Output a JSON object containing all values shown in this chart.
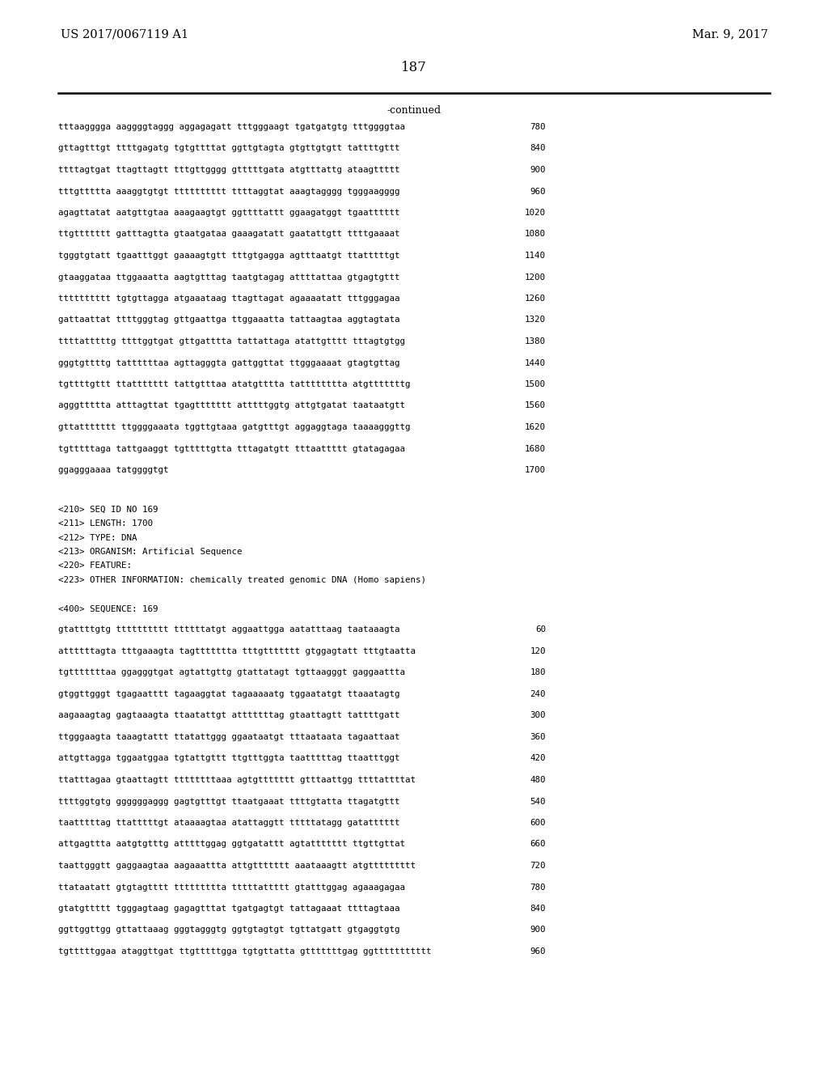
{
  "header_left": "US 2017/0067119 A1",
  "header_right": "Mar. 9, 2017",
  "page_number": "187",
  "continued_label": "-continued",
  "background_color": "#ffffff",
  "text_color": "#000000",
  "sequence_lines_top": [
    {
      "seq": "tttaagggga aaggggtaggg aggagagatt tttgggaagt tgatgatgtg tttggggtaa",
      "num": "780"
    },
    {
      "seq": "gttagtttgt ttttgagatg tgtgttttat ggttgtagta gtgttgtgtt tattttgttt",
      "num": "840"
    },
    {
      "seq": "ttttagtgat ttagttagtt tttgttgggg gtttttgata atgtttattg ataagttttt",
      "num": "900"
    },
    {
      "seq": "tttgttttta aaaggtgtgt tttttttttt ttttaggtat aaagtagggg tgggaagggg",
      "num": "960"
    },
    {
      "seq": "agagttatat aatgttgtaa aaagaagtgt ggttttattt ggaagatggt tgaatttttt",
      "num": "1020"
    },
    {
      "seq": "ttgttttttt gatttagtta gtaatgataa gaaagatatt gaatattgtt ttttgaaaat",
      "num": "1080"
    },
    {
      "seq": "tgggtgtatt tgaatttggt gaaaagtgtt tttgtgagga agtttaatgt ttatttttgt",
      "num": "1140"
    },
    {
      "seq": "gtaaggataa ttggaaatta aagtgtttag taatgtagag attttattaa gtgagtgttt",
      "num": "1200"
    },
    {
      "seq": "tttttttttt tgtgttagga atgaaataag ttagttagat agaaaatatt tttgggagaa",
      "num": "1260"
    },
    {
      "seq": "gattaattat ttttgggtag gttgaattga ttggaaatta tattaagtaa aggtagtata",
      "num": "1320"
    },
    {
      "seq": "ttttatttttg ttttggtgat gttgatttta tattattaga atattgtttt tttagtgtgg",
      "num": "1380"
    },
    {
      "seq": "gggtgttttg tattttttaa agttagggta gattggttat ttgggaaaat gtagtgttag",
      "num": "1440"
    },
    {
      "seq": "tgttttgttt ttattttttt tattgtttaa atatgtttta tatttttttta atgtttttttg",
      "num": "1500"
    },
    {
      "seq": "agggttttta atttagttat tgagttttttt atttttggtg attgtgatat taataatgtt",
      "num": "1560"
    },
    {
      "seq": "gttattttttt ttggggaaata tggttgtaaa gatgtttgt aggaggtaga taaaagggttg",
      "num": "1620"
    },
    {
      "seq": "tgtttttaga tattgaaggt tgtttttgtta tttagatgtt tttaattttt gtatagagaa",
      "num": "1680"
    },
    {
      "seq": "ggagggaaaa tatggggtgt",
      "num": "1700"
    }
  ],
  "metadata_lines": [
    "<210> SEQ ID NO 169",
    "<211> LENGTH: 1700",
    "<212> TYPE: DNA",
    "<213> ORGANISM: Artificial Sequence",
    "<220> FEATURE:",
    "<223> OTHER INFORMATION: chemically treated genomic DNA (Homo sapiens)"
  ],
  "sequence_label": "<400> SEQUENCE: 169",
  "sequence_lines_bottom": [
    {
      "seq": "gtattttgtg tttttttttt ttttttatgt aggaattgga aatatttaag taataaagta",
      "num": "60"
    },
    {
      "seq": "attttttagta tttgaaagta tagttttttta tttgttttttt gtggagtatt tttgtaatta",
      "num": "120"
    },
    {
      "seq": "tgtttttttaa ggagggtgat agtattgttg gtattatagt tgttaagggt gaggaattta",
      "num": "180"
    },
    {
      "seq": "gtggttgggt tgagaatttt tagaaggtat tagaaaaatg tggaatatgt ttaaatagtg",
      "num": "240"
    },
    {
      "seq": "aagaaagtag gagtaaagta ttaatattgt atttttttag gtaattagtt tattttgatt",
      "num": "300"
    },
    {
      "seq": "ttgggaagta taaagtattt ttatattggg ggaataatgt tttaataata tagaattaat",
      "num": "360"
    },
    {
      "seq": "attgttagga tggaatggaa tgtattgttt ttgtttggta taatttttag ttaatttggt",
      "num": "420"
    },
    {
      "seq": "ttatttagaa gtaattagtt ttttttttaaa agtgttttttt gtttaattgg ttttattttat",
      "num": "480"
    },
    {
      "seq": "ttttggtgtg ggggggaggg gagtgtttgt ttaatgaaat ttttgtatta ttagatgttt",
      "num": "540"
    },
    {
      "seq": "taatttttag ttatttttgt ataaaagtaa atattaggtt tttttatagg gatatttttt",
      "num": "600"
    },
    {
      "seq": "attgagttta aatgtgtttg atttttggag ggtgatattt agtattttttt ttgttgttat",
      "num": "660"
    },
    {
      "seq": "taattgggtt gaggaagtaa aagaaattta attgttttttt aaataaagtt atgttttttttt",
      "num": "720"
    },
    {
      "seq": "ttataatatt gtgtagtttt ttttttttta tttttattttt gtatttggag agaaagagaa",
      "num": "780"
    },
    {
      "seq": "gtatgttttt tgggagtaag gagagtttat tgatgagtgt tattagaaat ttttagtaaa",
      "num": "840"
    },
    {
      "seq": "ggttggttgg gttattaaag gggtagggtg ggtgtagtgt tgttatgatt gtgaggtgtg",
      "num": "900"
    },
    {
      "seq": "tgtttttggaa ataggttgat ttgtttttgga tgtgttatta gtttttttgag ggttttttttttt",
      "num": "960"
    }
  ]
}
